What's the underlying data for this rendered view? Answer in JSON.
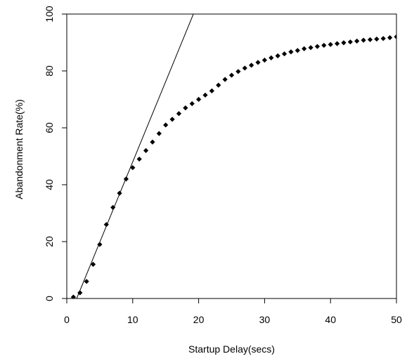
{
  "chart_data": {
    "type": "scatter",
    "xlabel": "Startup Delay(secs)",
    "ylabel": "Abandonment Rate(%)",
    "xlim": [
      0,
      50
    ],
    "ylim": [
      0,
      100
    ],
    "x_ticks": [
      0,
      10,
      20,
      30,
      40,
      50
    ],
    "y_ticks": [
      0,
      20,
      40,
      60,
      80,
      100
    ],
    "x_tick_labels": [
      "0",
      "10",
      "20",
      "30",
      "40",
      "50"
    ],
    "y_tick_labels": [
      "0",
      "20",
      "40",
      "60",
      "80",
      "100"
    ],
    "grid": false,
    "series": [
      {
        "marker": "diamond",
        "color": "#000000",
        "x": [
          1,
          2,
          3,
          4,
          5,
          6,
          7,
          8,
          9,
          10,
          11,
          12,
          13,
          14,
          15,
          16,
          17,
          18,
          19,
          20,
          21,
          22,
          23,
          24,
          25,
          26,
          27,
          28,
          29,
          30,
          31,
          32,
          33,
          34,
          35,
          36,
          37,
          38,
          39,
          40,
          41,
          42,
          43,
          44,
          45,
          46,
          47,
          48,
          49,
          50
        ],
        "y": [
          0.5,
          2,
          6,
          12,
          19,
          26,
          32,
          37,
          42,
          46,
          49,
          52,
          55,
          58,
          61,
          63,
          65,
          67,
          68.5,
          70,
          71.5,
          73,
          75,
          77,
          78.5,
          79.8,
          81,
          82,
          83,
          83.8,
          84.6,
          85.3,
          86,
          86.7,
          87.2,
          87.8,
          88.2,
          88.6,
          89,
          89.3,
          89.6,
          89.9,
          90.2,
          90.5,
          90.8,
          91,
          91.2,
          91.4,
          91.7,
          92
        ]
      },
      {
        "type": "line",
        "color": "#000000",
        "x": [
          1.5,
          19.2
        ],
        "y": [
          0,
          100
        ]
      }
    ]
  }
}
